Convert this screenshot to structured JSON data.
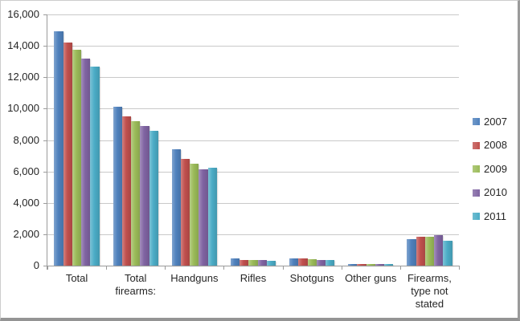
{
  "chart_data": {
    "type": "bar",
    "title": "",
    "xlabel": "",
    "ylabel": "",
    "categories": [
      "Total",
      "Total firearms:",
      "Handguns",
      "Rifles",
      "Shotguns",
      "Other guns",
      "Firearms, type not stated"
    ],
    "series": [
      {
        "name": "2007",
        "color": "#4F81BD",
        "values": [
          14916,
          10129,
          7398,
          453,
          457,
          116,
          1705
        ]
      },
      {
        "name": "2008",
        "color": "#C0504D",
        "values": [
          14224,
          9528,
          6800,
          380,
          442,
          81,
          1825
        ]
      },
      {
        "name": "2009",
        "color": "#9BBB59",
        "values": [
          13752,
          9199,
          6501,
          351,
          423,
          96,
          1828
        ]
      },
      {
        "name": "2010",
        "color": "#8064A2",
        "values": [
          13164,
          8874,
          6115,
          367,
          366,
          93,
          1933
        ]
      },
      {
        "name": "2011",
        "color": "#4BACC6",
        "values": [
          12664,
          8583,
          6220,
          323,
          356,
          97,
          1587
        ]
      }
    ],
    "ylim": [
      0,
      16000
    ],
    "ytick_step": 2000,
    "ytick_labels": [
      "0",
      "2,000",
      "4,000",
      "6,000",
      "8,000",
      "10,000",
      "12,000",
      "14,000",
      "16,000"
    ],
    "grid": true,
    "legend_position": "right",
    "legend_entries": [
      "2007",
      "2008",
      "2009",
      "2010",
      "2011"
    ]
  },
  "style": {
    "background": "#FFFFFF",
    "gridline_color": "#C9C9C9",
    "axis_color": "#9B9B9B",
    "text_color": "#262626",
    "frame_border": "#CDCDCD",
    "frame_shadow": "#949494"
  }
}
